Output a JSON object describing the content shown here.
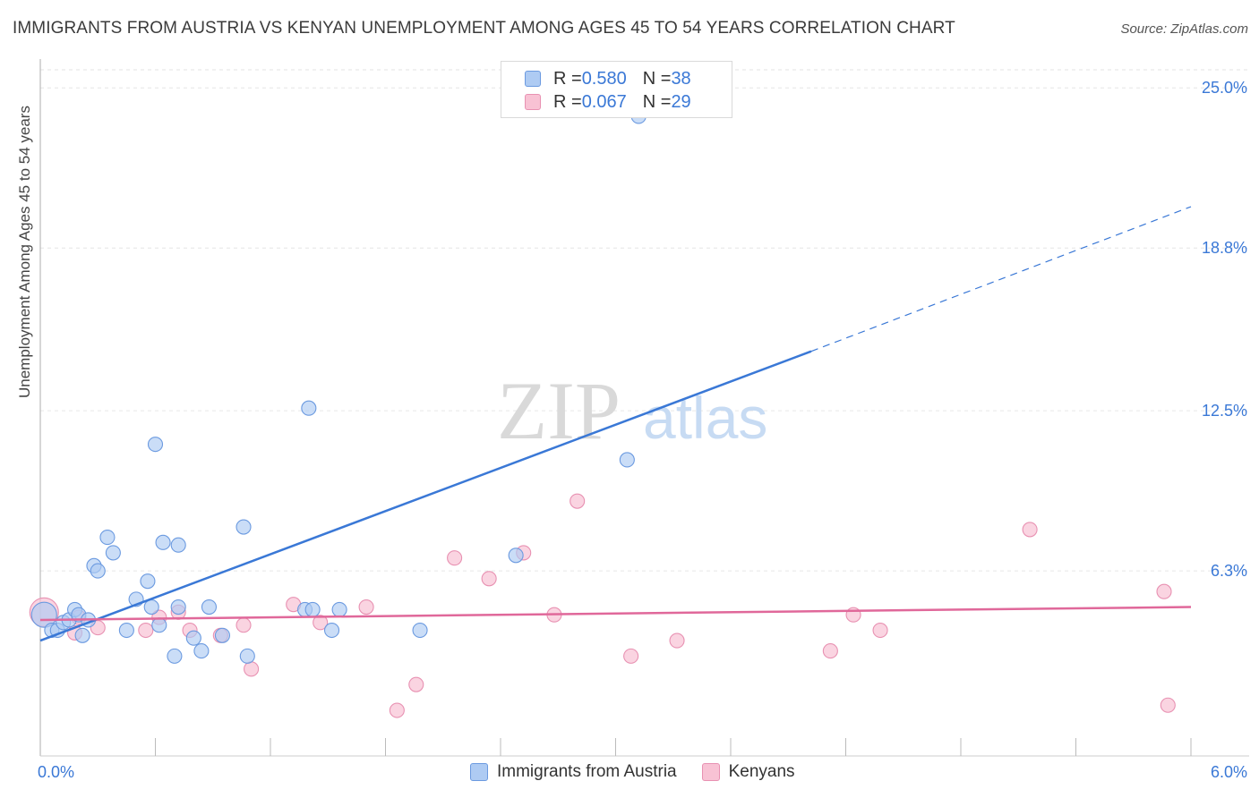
{
  "header": {
    "title": "IMMIGRANTS FROM AUSTRIA VS KENYAN UNEMPLOYMENT AMONG AGES 45 TO 54 YEARS CORRELATION CHART",
    "source": "Source: ZipAtlas.com"
  },
  "watermark": {
    "zip": "ZIP",
    "atlas": "atlas"
  },
  "legend": {
    "austria": {
      "r_label": "R = ",
      "r_value": "0.580",
      "n_label": "N = ",
      "n_value": "38"
    },
    "kenyans": {
      "r_label": "R = ",
      "r_value": "0.067",
      "n_label": "N = ",
      "n_value": "29"
    }
  },
  "bottom_legend": {
    "austria": "Immigrants from Austria",
    "kenyans": "Kenyans"
  },
  "chart_data": {
    "type": "scatter",
    "title": "IMMIGRANTS FROM AUSTRIA VS KENYAN UNEMPLOYMENT AMONG AGES 45 TO 54 YEARS CORRELATION CHART",
    "xlabel": "",
    "ylabel": "Unemployment Among Ages 45 to 54 years",
    "xlim": [
      0,
      6
    ],
    "ylim": [
      0,
      25.7
    ],
    "x_tick_labels": [
      "0.0%",
      "6.0%"
    ],
    "y_ticks": [
      6.3,
      12.5,
      18.8,
      25.0
    ],
    "y_tick_labels": [
      "6.3%",
      "12.5%",
      "18.8%",
      "25.0%"
    ],
    "colors": {
      "austria": "#3a78d6",
      "austria_fill": "#aecbf3",
      "kenyans": "#e0689a",
      "kenyans_fill": "#f8c2d4",
      "axis_label": "#3a78d6"
    },
    "series": [
      {
        "name": "Immigrants from Austria",
        "points": [
          [
            0.02,
            4.6
          ],
          [
            0.06,
            4.0
          ],
          [
            0.09,
            4.0
          ],
          [
            0.12,
            4.3
          ],
          [
            0.15,
            4.4
          ],
          [
            0.18,
            4.8
          ],
          [
            0.2,
            4.6
          ],
          [
            0.22,
            3.8
          ],
          [
            0.25,
            4.4
          ],
          [
            0.28,
            6.5
          ],
          [
            0.3,
            6.3
          ],
          [
            0.35,
            7.6
          ],
          [
            0.38,
            7.0
          ],
          [
            0.45,
            4.0
          ],
          [
            0.5,
            5.2
          ],
          [
            0.56,
            5.9
          ],
          [
            0.58,
            4.9
          ],
          [
            0.6,
            11.2
          ],
          [
            0.62,
            4.2
          ],
          [
            0.64,
            7.4
          ],
          [
            0.7,
            3.0
          ],
          [
            0.72,
            4.9
          ],
          [
            0.8,
            3.7
          ],
          [
            0.84,
            3.2
          ],
          [
            0.88,
            4.9
          ],
          [
            0.95,
            3.8
          ],
          [
            1.06,
            8.0
          ],
          [
            1.08,
            3.0
          ],
          [
            1.38,
            4.8
          ],
          [
            1.42,
            4.8
          ],
          [
            1.52,
            4.0
          ],
          [
            1.56,
            4.8
          ],
          [
            1.98,
            4.0
          ],
          [
            2.48,
            6.9
          ],
          [
            3.06,
            10.6
          ],
          [
            3.12,
            23.9
          ],
          [
            1.4,
            12.6
          ],
          [
            0.72,
            7.3
          ]
        ],
        "trend": {
          "x": [
            0.0,
            4.02
          ],
          "y": [
            3.6,
            14.8
          ],
          "dashed_to": [
            6.0,
            20.4
          ]
        }
      },
      {
        "name": "Kenyans",
        "points": [
          [
            0.02,
            4.7
          ],
          [
            0.18,
            3.9
          ],
          [
            0.3,
            4.1
          ],
          [
            0.55,
            4.0
          ],
          [
            0.62,
            4.5
          ],
          [
            0.72,
            4.7
          ],
          [
            0.78,
            4.0
          ],
          [
            0.94,
            3.8
          ],
          [
            1.06,
            4.2
          ],
          [
            1.1,
            2.5
          ],
          [
            1.32,
            5.0
          ],
          [
            1.46,
            4.3
          ],
          [
            1.7,
            4.9
          ],
          [
            1.86,
            0.9
          ],
          [
            1.96,
            1.9
          ],
          [
            2.16,
            6.8
          ],
          [
            2.34,
            6.0
          ],
          [
            2.52,
            7.0
          ],
          [
            2.68,
            4.6
          ],
          [
            2.8,
            9.0
          ],
          [
            3.08,
            3.0
          ],
          [
            3.32,
            3.6
          ],
          [
            4.12,
            3.2
          ],
          [
            4.24,
            4.6
          ],
          [
            4.38,
            4.0
          ],
          [
            5.16,
            7.9
          ],
          [
            5.86,
            5.5
          ],
          [
            5.88,
            1.1
          ],
          [
            0.2,
            4.5
          ]
        ],
        "trend": {
          "x": [
            0.0,
            6.0
          ],
          "y": [
            4.4,
            4.9
          ]
        }
      }
    ]
  }
}
